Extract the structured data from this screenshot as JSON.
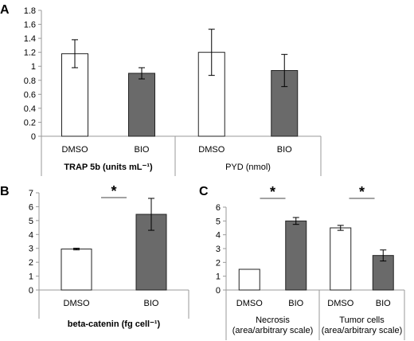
{
  "panels": {
    "a": {
      "letter": "A"
    },
    "b": {
      "letter": "B"
    },
    "c": {
      "letter": "C"
    }
  },
  "colors": {
    "dmso": "#ffffff",
    "bio": "#6a6a6a",
    "stroke": "#222222",
    "axis": "#9a9a9a"
  },
  "chart_data": [
    {
      "panel": "A",
      "type": "bar",
      "ylim": [
        0,
        1.8
      ],
      "yticks": [
        "0",
        "0.2",
        "0.4",
        "0.6",
        "0.8",
        "1",
        "1.2",
        "1.4",
        "1.6",
        "1.8"
      ],
      "groups": [
        {
          "label": "TRAP 5b (units mL⁻¹)",
          "bold": true,
          "bars": [
            {
              "category": "DMSO",
              "value": 1.18,
              "error": 0.2,
              "fill": "#ffffff"
            },
            {
              "category": "BIO",
              "value": 0.9,
              "error": 0.08,
              "fill": "#6a6a6a"
            }
          ]
        },
        {
          "label": "PYD (nmol)",
          "bold": false,
          "bars": [
            {
              "category": "DMSO",
              "value": 1.2,
              "error": 0.33,
              "fill": "#ffffff"
            },
            {
              "category": "BIO",
              "value": 0.94,
              "error": 0.23,
              "fill": "#6a6a6a"
            }
          ]
        }
      ],
      "grid": false
    },
    {
      "panel": "B",
      "type": "bar",
      "ylim": [
        0,
        7
      ],
      "yticks": [
        "0",
        "1",
        "2",
        "3",
        "4",
        "5",
        "6",
        "7"
      ],
      "groups": [
        {
          "label": "beta-catenin (fg cell⁻¹)",
          "bold": true,
          "bars": [
            {
              "category": "DMSO",
              "value": 2.95,
              "error": 0.06,
              "fill": "#ffffff"
            },
            {
              "category": "BIO",
              "value": 5.45,
              "error": 1.15,
              "fill": "#6a6a6a"
            }
          ]
        }
      ],
      "annotations": [
        {
          "text": "*",
          "between": [
            "DMSO",
            "BIO"
          ]
        }
      ],
      "grid": false
    },
    {
      "panel": "C",
      "type": "bar",
      "ylim": [
        0,
        6
      ],
      "yticks": [
        "0",
        "1",
        "2",
        "3",
        "4",
        "5",
        "6"
      ],
      "groups": [
        {
          "label": "Necrosis\n(area/arbitrary scale)",
          "bold": false,
          "bars": [
            {
              "category": "DMSO",
              "value": 1.5,
              "error": 0,
              "fill": "#ffffff"
            },
            {
              "category": "BIO",
              "value": 5.0,
              "error": 0.25,
              "fill": "#6a6a6a"
            }
          ]
        },
        {
          "label": "Tumor cells\n(area/arbitrary scale)",
          "bold": false,
          "bars": [
            {
              "category": "DMSO",
              "value": 4.5,
              "error": 0.18,
              "fill": "#ffffff"
            },
            {
              "category": "BIO",
              "value": 2.5,
              "error": 0.4,
              "fill": "#6a6a6a"
            }
          ]
        }
      ],
      "annotations": [
        {
          "text": "*",
          "group": 0
        },
        {
          "text": "*",
          "group": 1
        }
      ],
      "grid": false
    }
  ]
}
